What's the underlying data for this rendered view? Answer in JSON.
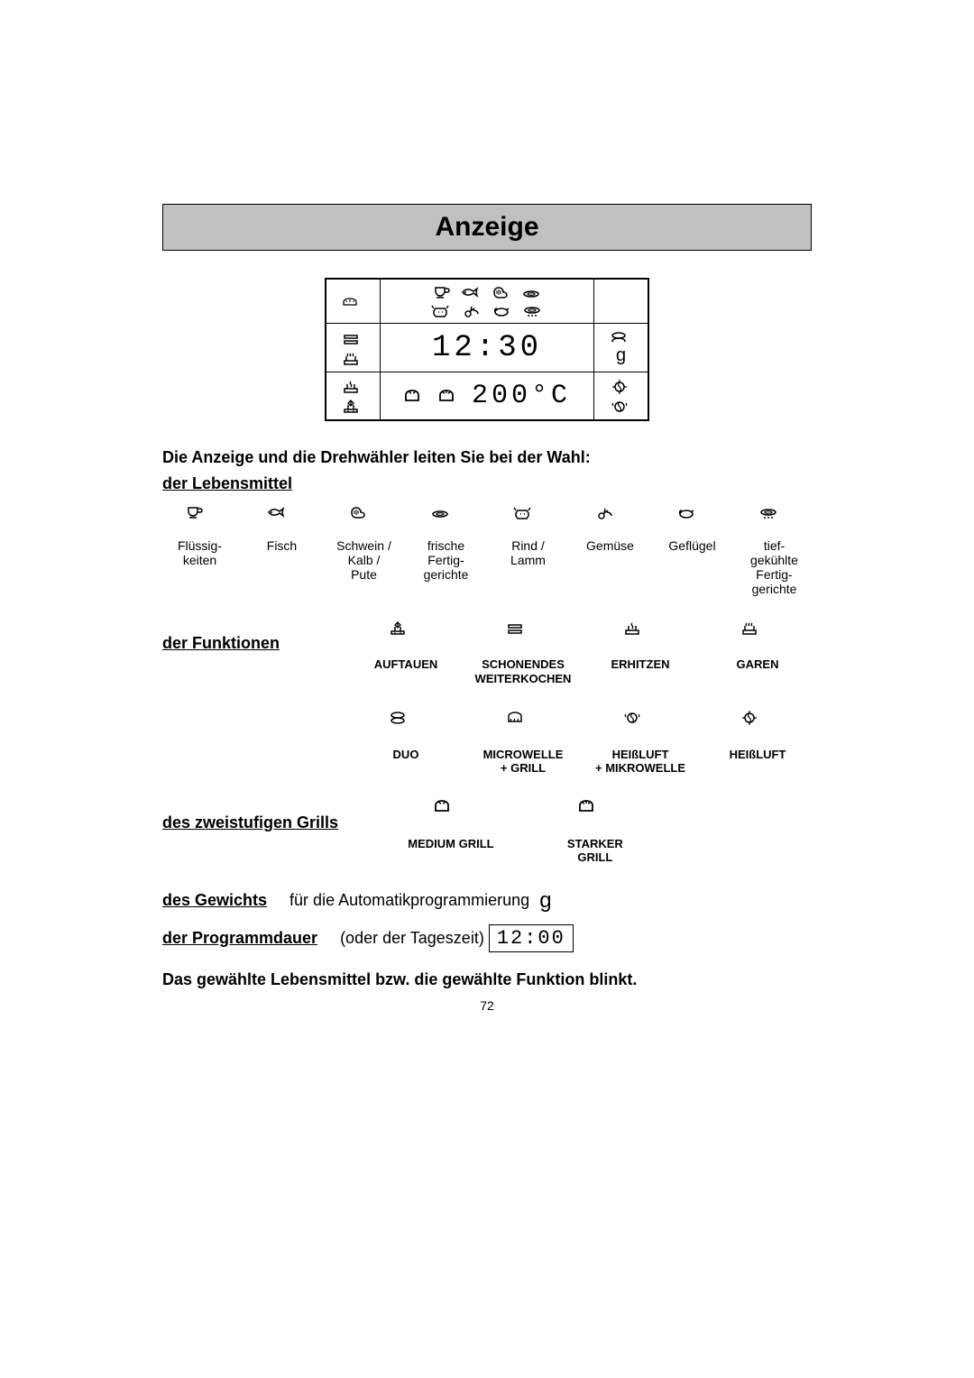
{
  "title": "Anzeige",
  "display": {
    "time": "12:30",
    "temp": "200°C",
    "weight_unit": "g"
  },
  "intro_line": "Die Anzeige und die Drehwähler leiten Sie bei der Wahl:",
  "section_food": "der Lebensmittel",
  "foods": [
    {
      "label": "Flüssig-\nkeiten",
      "icon": "cup"
    },
    {
      "label": "Fisch",
      "icon": "fish"
    },
    {
      "label": "Schwein /\nKalb /\nPute",
      "icon": "meat"
    },
    {
      "label": "frische\nFertig-\ngerichte",
      "icon": "dish"
    },
    {
      "label": "Rind /\nLamm",
      "icon": "cow"
    },
    {
      "label": "Gemüse",
      "icon": "veg"
    },
    {
      "label": "Geflügel",
      "icon": "poultry"
    },
    {
      "label": "tief-\ngekühlte\nFertig-\ngerichte",
      "icon": "frozen-dish"
    }
  ],
  "section_functions": "der Funktionen",
  "functions_row1": [
    {
      "label": "AUFTAUEN",
      "icon": "defrost"
    },
    {
      "label": "SCHONENDES\nWEITERKOCHEN",
      "icon": "gentle"
    },
    {
      "label": "ERHITZEN",
      "icon": "reheat"
    },
    {
      "label": "GAREN",
      "icon": "cook"
    }
  ],
  "functions_row2": [
    {
      "label": "DUO",
      "icon": "duo"
    },
    {
      "label": "MICROWELLE\n+ GRILL",
      "icon": "mw-grill"
    },
    {
      "label": "HEIßLUFT\n+ MIKROWELLE",
      "icon": "conv-mw"
    },
    {
      "label": "HEIßLUFT",
      "icon": "convection"
    }
  ],
  "section_grill": "des zweistufigen Grills",
  "grills": [
    {
      "label": "MEDIUM GRILL",
      "icon": "grill-med"
    },
    {
      "label": "STARKER GRILL",
      "icon": "grill-strong"
    }
  ],
  "weight_line_label": "des Gewichts",
  "weight_line_rest": " für die Automatikprogrammierung",
  "weight_symbol": "g",
  "duration_line_label": "der Programmdauer",
  "duration_line_rest": " (oder der Tageszeit) ",
  "duration_value": "12:00",
  "final_line": "Das gewählte Lebensmittel bzw. die gewählte Funktion blinkt.",
  "page_number": "72"
}
